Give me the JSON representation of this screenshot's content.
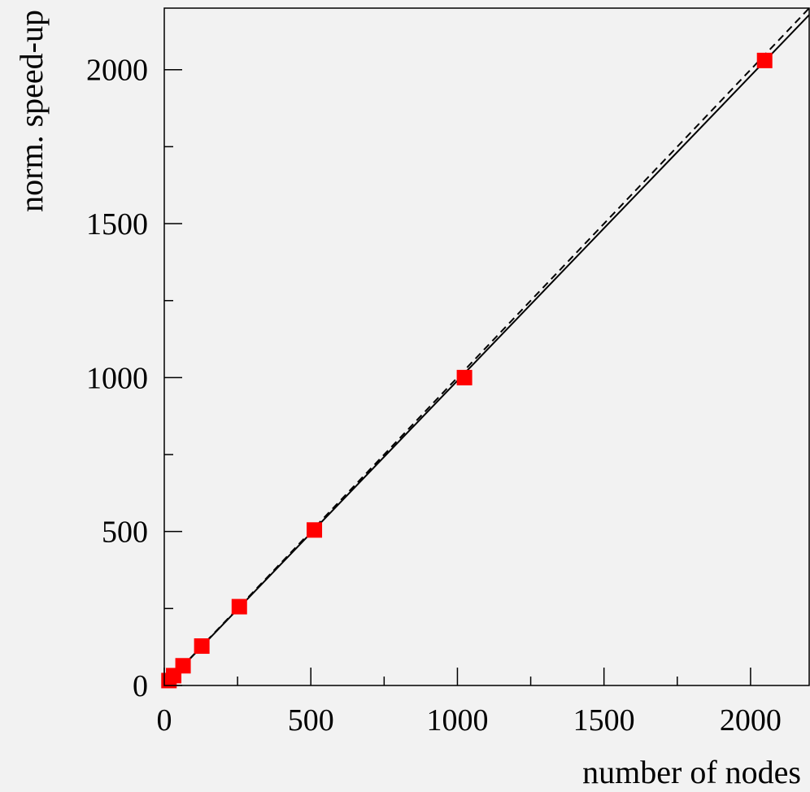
{
  "chart_data": {
    "type": "scatter",
    "title": "",
    "xlabel": "number of nodes",
    "ylabel": "norm. speed-up",
    "xlim": [
      0,
      2200
    ],
    "ylim": [
      0,
      2200
    ],
    "x_ticks": [
      0,
      500,
      1000,
      1500,
      2000
    ],
    "y_ticks": [
      0,
      500,
      1000,
      1500,
      2000
    ],
    "x_tick_labels": [
      "0",
      "500",
      "1000",
      "1500",
      "2000"
    ],
    "y_tick_labels": [
      "0",
      "500",
      "1000",
      "1500",
      "2000"
    ],
    "grid": false,
    "legend": "none",
    "series": [
      {
        "points": [
          {
            "x": 16,
            "y": 16
          },
          {
            "x": 32,
            "y": 32
          },
          {
            "x": 64,
            "y": 64
          },
          {
            "x": 128,
            "y": 128
          },
          {
            "x": 256,
            "y": 256
          },
          {
            "x": 512,
            "y": 505
          },
          {
            "x": 1024,
            "y": 1000
          },
          {
            "x": 2048,
            "y": 2030
          }
        ],
        "marker": "square",
        "color": "#ff0000"
      }
    ],
    "lines": [
      {
        "style": "solid",
        "slope": 0.99,
        "intercept": 0,
        "color": "#000000"
      },
      {
        "style": "dashed",
        "slope": 1.0,
        "intercept": 0,
        "color": "#000000"
      }
    ]
  }
}
